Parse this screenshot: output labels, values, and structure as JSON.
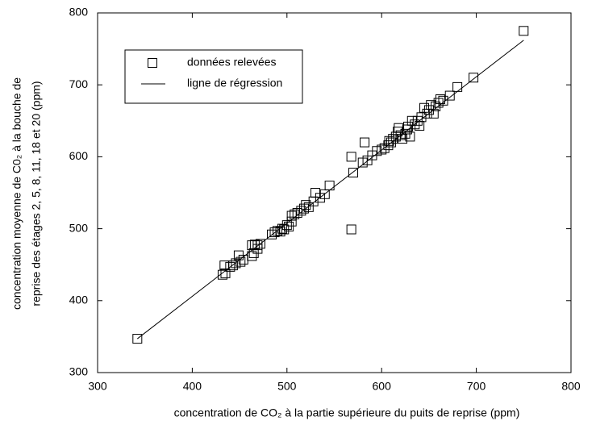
{
  "chart_data": {
    "type": "scatter",
    "x_label": "concentration de CO₂ à la partie supérieure du puits de reprise (ppm)",
    "y_label": [
      "concentration moyenne de  C0₂ à la bouche de",
      "reprise des étages 2, 5, 8, 11, 18 et 20 (ppm)"
    ],
    "xlim": [
      300,
      800
    ],
    "xticks": [
      300,
      400,
      500,
      600,
      700,
      800
    ],
    "ylim": [
      300,
      800
    ],
    "yticks": [
      300,
      400,
      500,
      600,
      700,
      800
    ],
    "legend": "upper left",
    "series": [
      {
        "name": "données relevées",
        "type": "scatter",
        "color": "#000000",
        "x": [
          342,
          432,
          435,
          434,
          440,
          443,
          446,
          449,
          451,
          454,
          463,
          465,
          463,
          466,
          469,
          472,
          469,
          484,
          487,
          490,
          493,
          495,
          497,
          500,
          502,
          505,
          505,
          508,
          511,
          515,
          518,
          520,
          523,
          528,
          530,
          535,
          540,
          545,
          568,
          568,
          570,
          580,
          582,
          585,
          590,
          595,
          600,
          603,
          607,
          608,
          610,
          612,
          615,
          617,
          618,
          620,
          622,
          625,
          627,
          628,
          630,
          632,
          635,
          638,
          640,
          642,
          645,
          648,
          650,
          652,
          655,
          657,
          660,
          662,
          665,
          672,
          680,
          697,
          750
        ],
        "values": [
          347,
          436,
          438,
          449,
          447,
          449,
          452,
          463,
          454,
          457,
          462,
          466,
          477,
          478,
          477,
          479,
          472,
          492,
          495,
          497,
          496,
          500,
          499,
          505,
          503,
          510,
          518,
          520,
          522,
          525,
          528,
          533,
          530,
          538,
          550,
          543,
          548,
          560,
          499,
          600,
          578,
          592,
          620,
          595,
          602,
          608,
          610,
          612,
          616,
          622,
          620,
          625,
          628,
          635,
          640,
          630,
          625,
          632,
          638,
          642,
          628,
          650,
          645,
          650,
          643,
          655,
          668,
          660,
          665,
          672,
          660,
          670,
          675,
          680,
          678,
          685,
          697,
          710,
          775
        ]
      },
      {
        "name": "ligne de régression",
        "type": "line",
        "color": "#000000",
        "x": [
          342,
          750
        ],
        "values": [
          347,
          762
        ]
      }
    ]
  }
}
